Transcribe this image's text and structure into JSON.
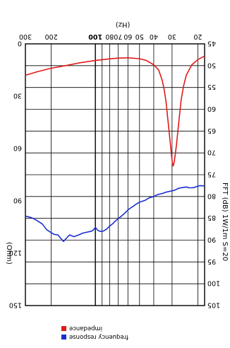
{
  "chart_data": {
    "type": "line",
    "orientation": "rotated 180 degrees (printed upside down)",
    "xlabel": "(Hz)",
    "xscale": "log",
    "xlim": [
      18,
      300
    ],
    "x_ticks": [
      "20",
      "30",
      "40",
      "50",
      "60",
      "70",
      "80",
      "100",
      "200",
      "300"
    ],
    "y_left_label": "FFT (dB) 1W/1m S=20",
    "y_left_lim": [
      45,
      105
    ],
    "y_left_ticks": [
      "45",
      "50",
      "55",
      "60",
      "65",
      "70",
      "75",
      "80",
      "85",
      "90",
      "95",
      "100",
      "105"
    ],
    "y_right_label": "(Ohm)",
    "y_right_lim": [
      0,
      150
    ],
    "y_right_ticks": [
      "0",
      "30",
      "60",
      "90",
      "120",
      "150"
    ],
    "grid": true,
    "legend_position": "top-right",
    "series": [
      {
        "name": "frequency response",
        "axis": "left",
        "color": "#1a2fd0",
        "x": [
          18,
          19,
          20,
          21,
          22,
          23,
          24,
          25,
          27,
          29,
          31,
          33,
          35,
          38,
          40,
          43,
          46,
          50,
          53,
          55,
          58,
          60,
          63,
          66,
          70,
          73,
          76,
          80,
          84,
          88,
          92,
          96,
          100,
          104,
          108,
          115,
          122,
          130,
          140,
          150,
          158,
          165,
          172,
          180,
          190,
          200,
          215,
          230,
          250,
          270,
          290,
          300
        ],
        "y": [
          77.6,
          77.5,
          77.6,
          77.9,
          78.0,
          78.0,
          77.8,
          77.9,
          78.1,
          78.6,
          78.8,
          79.0,
          79.3,
          79.6,
          80.0,
          80.3,
          80.9,
          81.3,
          81.8,
          82.2,
          82.7,
          83.1,
          83.8,
          84.4,
          85.1,
          85.6,
          86.2,
          86.8,
          87.5,
          87.9,
          88.0,
          87.8,
          87.1,
          87.8,
          88.0,
          88.2,
          88.4,
          88.8,
          89.2,
          88.8,
          89.6,
          90.3,
          89.6,
          88.8,
          88.7,
          88.3,
          87.6,
          86.3,
          85.5,
          84.9,
          84.6,
          84.5
        ]
      },
      {
        "name": "impedance",
        "axis": "right",
        "color": "#e01a1a",
        "x": [
          18,
          20,
          22,
          24,
          25,
          26,
          27,
          28,
          29,
          29.5,
          30,
          31,
          32,
          33,
          34,
          35,
          37,
          40,
          45,
          50,
          60,
          70,
          80,
          100,
          130,
          160,
          200,
          250,
          300
        ],
        "y": [
          7,
          9,
          12,
          18,
          24,
          32,
          45,
          58,
          68,
          70,
          67,
          55,
          44,
          33,
          26,
          21,
          15,
          12,
          9.5,
          8.5,
          8,
          8.2,
          8.6,
          9.5,
          11,
          12.5,
          14,
          16,
          18
        ]
      }
    ]
  }
}
